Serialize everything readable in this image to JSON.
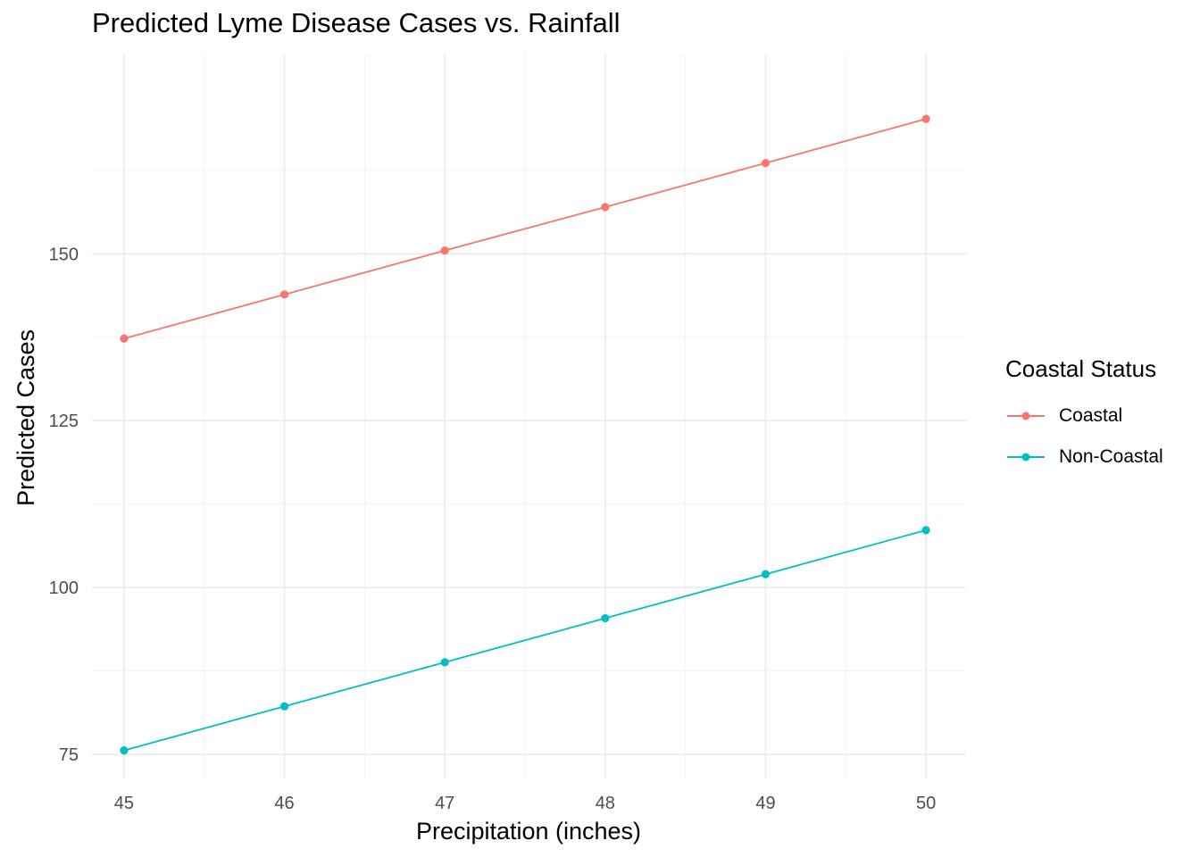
{
  "chart_data": {
    "type": "line",
    "title": "Predicted Lyme Disease Cases vs. Rainfall",
    "xlabel": "Precipitation (inches)",
    "ylabel": "Predicted Cases",
    "x": [
      45,
      46,
      47,
      48,
      49,
      50
    ],
    "xlim": [
      44.8,
      50.25
    ],
    "ylim": [
      71.4,
      180
    ],
    "x_ticks": [
      "45",
      "46",
      "47",
      "48",
      "49",
      "50"
    ],
    "y_ticks": [
      "75",
      "100",
      "125",
      "150"
    ],
    "grid": true,
    "legend": {
      "title": "Coastal Status",
      "placement": "right"
    },
    "series": [
      {
        "name": "Coastal",
        "color": "#F8766D",
        "values": [
          137.3,
          143.9,
          150.5,
          157.0,
          163.6,
          170.2
        ]
      },
      {
        "name": "Non-Coastal",
        "color": "#00BFC4",
        "values": [
          75.6,
          82.2,
          88.8,
          95.4,
          102.0,
          108.6
        ]
      }
    ]
  }
}
